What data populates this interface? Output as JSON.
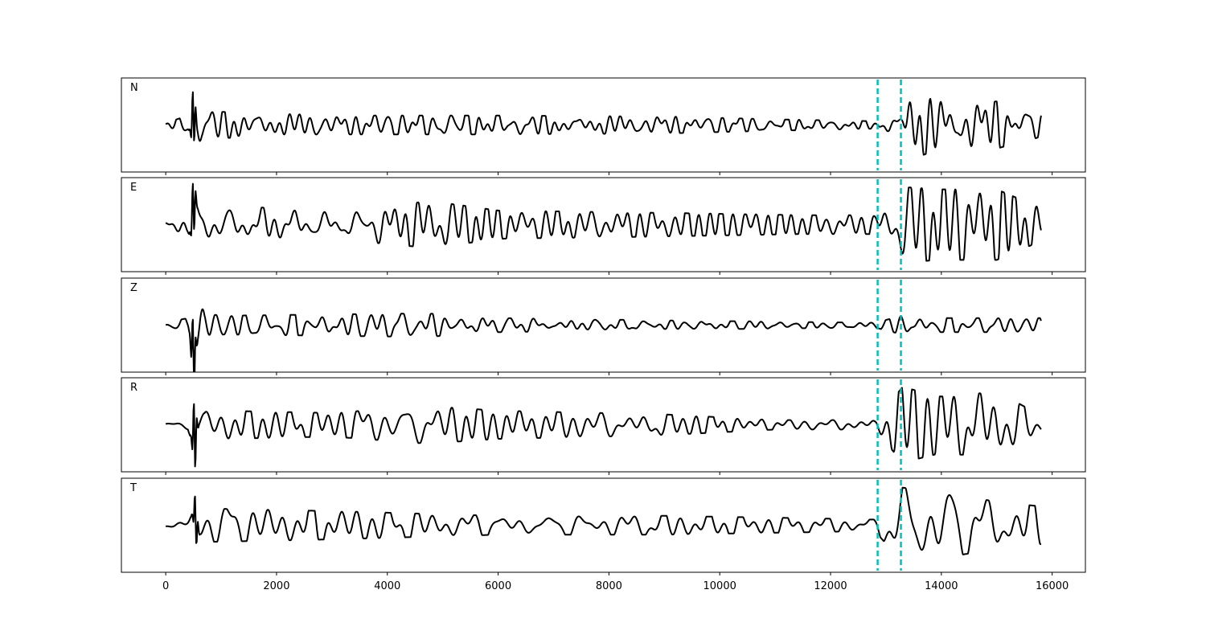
{
  "chart_data": {
    "type": "line",
    "title": "",
    "xlabel": "",
    "ylabel": "",
    "xlim": [
      -800,
      16600
    ],
    "x_ticks": [
      0,
      2000,
      4000,
      6000,
      8000,
      10000,
      12000,
      14000,
      16000
    ],
    "x_tick_labels": [
      "0",
      "2000",
      "4000",
      "6000",
      "8000",
      "10000",
      "12000",
      "14000",
      "16000"
    ],
    "grid": false,
    "legend": "none",
    "trace_color": "#000000",
    "marker_color": "#00bfbf",
    "vertical_markers": [
      12850,
      13270
    ],
    "x_start": 0,
    "x_end": 15800,
    "panels": [
      {
        "name": "N",
        "spike_x": 500,
        "spike_amp": 0.7,
        "envelope": [
          [
            0,
            0.04
          ],
          [
            400,
            0.2
          ],
          [
            500,
            0.7
          ],
          [
            650,
            0.3
          ],
          [
            1000,
            0.28
          ],
          [
            3000,
            0.2
          ],
          [
            6000,
            0.2
          ],
          [
            9000,
            0.18
          ],
          [
            11000,
            0.12
          ],
          [
            12800,
            0.08
          ],
          [
            13270,
            0.3
          ],
          [
            13400,
            0.75
          ],
          [
            14000,
            0.5
          ],
          [
            15000,
            0.5
          ],
          [
            15800,
            0.25
          ]
        ]
      },
      {
        "name": "E",
        "spike_x": 500,
        "spike_amp": 0.7,
        "envelope": [
          [
            0,
            0.06
          ],
          [
            400,
            0.3
          ],
          [
            500,
            0.7
          ],
          [
            700,
            0.45
          ],
          [
            1000,
            0.4
          ],
          [
            3000,
            0.3
          ],
          [
            4800,
            0.5
          ],
          [
            6000,
            0.3
          ],
          [
            9000,
            0.25
          ],
          [
            11500,
            0.2
          ],
          [
            12800,
            0.2
          ],
          [
            13300,
            0.8
          ],
          [
            14000,
            0.75
          ],
          [
            15000,
            0.75
          ],
          [
            15800,
            0.35
          ]
        ]
      },
      {
        "name": "Z",
        "spike_x": 500,
        "spike_amp": 0.85,
        "envelope": [
          [
            0,
            0.05
          ],
          [
            400,
            0.15
          ],
          [
            500,
            0.85
          ],
          [
            700,
            0.25
          ],
          [
            1000,
            0.2
          ],
          [
            4700,
            0.25
          ],
          [
            6000,
            0.15
          ],
          [
            9000,
            0.1
          ],
          [
            12800,
            0.05
          ],
          [
            13300,
            0.2
          ],
          [
            14000,
            0.15
          ],
          [
            15800,
            0.15
          ]
        ]
      },
      {
        "name": "R",
        "spike_x": 520,
        "spike_amp": 0.85,
        "envelope": [
          [
            0,
            0.03
          ],
          [
            400,
            0.15
          ],
          [
            520,
            0.85
          ],
          [
            700,
            0.35
          ],
          [
            1000,
            0.3
          ],
          [
            3000,
            0.25
          ],
          [
            4700,
            0.4
          ],
          [
            6000,
            0.3
          ],
          [
            9000,
            0.22
          ],
          [
            11000,
            0.1
          ],
          [
            12800,
            0.1
          ],
          [
            13300,
            0.8
          ],
          [
            14000,
            0.6
          ],
          [
            15000,
            0.7
          ],
          [
            15800,
            0.2
          ]
        ]
      },
      {
        "name": "T",
        "spike_x": 540,
        "spike_amp": 0.55,
        "envelope": [
          [
            0,
            0.08
          ],
          [
            400,
            0.25
          ],
          [
            540,
            0.55
          ],
          [
            700,
            0.35
          ],
          [
            1000,
            0.35
          ],
          [
            3000,
            0.3
          ],
          [
            6000,
            0.2
          ],
          [
            9000,
            0.2
          ],
          [
            11500,
            0.15
          ],
          [
            12800,
            0.12
          ],
          [
            13300,
            0.8
          ],
          [
            14000,
            0.7
          ],
          [
            15000,
            0.5
          ],
          [
            15800,
            0.4
          ]
        ]
      }
    ]
  }
}
